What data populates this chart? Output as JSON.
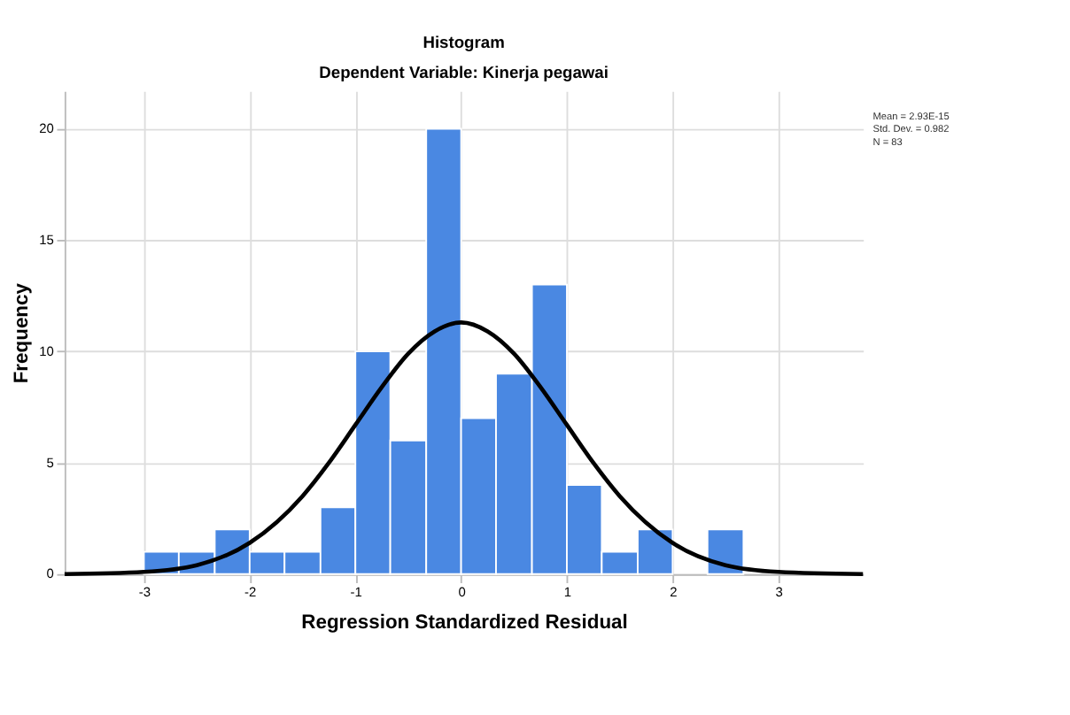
{
  "chart_data": {
    "type": "histogram",
    "title": "Histogram",
    "subtitle": "Dependent Variable: Kinerja pegawai",
    "xlabel": "Regression Standardized Residual",
    "ylabel": "Frequency",
    "bins": [
      -3,
      -2.67,
      -2.33,
      -2,
      -1.67,
      -1.33,
      -1,
      -0.67,
      -0.33,
      0,
      0.33,
      0.67,
      1,
      1.33,
      1.67,
      2,
      2.33,
      2.67
    ],
    "values": [
      1,
      1,
      2,
      1,
      1,
      3,
      10,
      6,
      20,
      7,
      9,
      13,
      4,
      1,
      2,
      0,
      2
    ],
    "color": "#4a88e2",
    "series": [
      {
        "type": "line",
        "color": "#000000",
        "x": [
          -3.75,
          -3,
          -2.5,
          -2,
          -1.5,
          -1.25,
          -1,
          -0.75,
          -0.5,
          -0.25,
          0,
          0.25,
          0.5,
          0.75,
          1,
          1.25,
          1.5,
          2,
          2.5,
          3,
          3.8
        ],
        "values": [
          0,
          0.1,
          0.4,
          1.4,
          3.5,
          5.0,
          6.7,
          8.4,
          9.9,
          10.9,
          11.3,
          10.9,
          9.9,
          8.4,
          6.7,
          5.0,
          3.5,
          1.4,
          0.4,
          0.1,
          0
        ]
      }
    ],
    "xlim": [
      -3.75,
      3.8
    ],
    "xticks": [
      -3,
      -2,
      -1,
      0,
      1,
      2,
      3
    ],
    "ylim": [
      0,
      21.7
    ],
    "yticks": [
      0,
      5,
      10,
      15,
      20
    ],
    "grid": true,
    "annotations": [
      "Mean = 2.93E-15",
      "Std. Dev. = 0.982",
      "N = 83"
    ]
  }
}
